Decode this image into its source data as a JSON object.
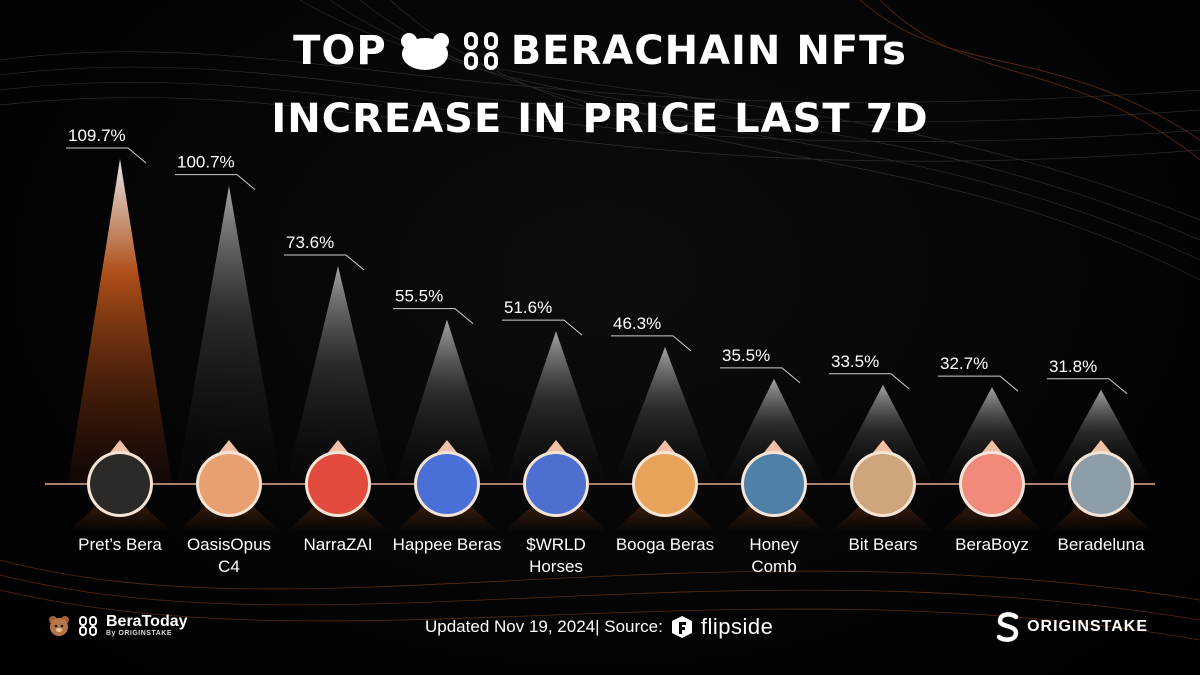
{
  "header": {
    "title_prefix": "TOP",
    "title_suffix": "BERACHAIN NFTs",
    "title_line2": "INCREASE IN PRICE LAST 7D"
  },
  "chart_data": {
    "type": "bar",
    "title": "TOP BERACHAIN NFTs INCREASE IN PRICE LAST 7D",
    "unit": "%",
    "categories": [
      "Pret’s Bera",
      "OasisOpus C4",
      "NarraZAI",
      "Happee Beras",
      "$WRLD Horses",
      "Booga Beras",
      "Honey Comb",
      "Bit Bears",
      "BeraBoyz",
      "Beradeluna"
    ],
    "values": [
      109.7,
      100.7,
      73.6,
      55.5,
      51.6,
      46.3,
      35.5,
      33.5,
      32.7,
      31.8
    ],
    "value_labels": [
      "109.7%",
      "100.7%",
      "73.6%",
      "55.5%",
      "51.6%",
      "46.3%",
      "35.5%",
      "33.5%",
      "32.7%",
      "31.8%"
    ],
    "label_lines": [
      [
        "Pret’s Bera"
      ],
      [
        "OasisOpus",
        "C4"
      ],
      [
        "NarraZAI"
      ],
      [
        "Happee Beras"
      ],
      [
        "$WRLD",
        "Horses"
      ],
      [
        "Booga Beras"
      ],
      [
        "Honey",
        "Comb"
      ],
      [
        "Bit Bears"
      ],
      [
        "BeraBoyz"
      ],
      [
        "Beradeluna"
      ]
    ],
    "highlight_index": 0,
    "grid": false,
    "legend": "none",
    "colors": {
      "highlight": "#c2571b",
      "bar": "#8a8a8a",
      "baseline": "#e3a98e",
      "marker": "#f2c0a6"
    },
    "avatar_colors": [
      "#2c2a26",
      "#e9a070",
      "#e34b3e",
      "#4a6fd6",
      "#4c6fd0",
      "#e7a35a",
      "#4f80a8",
      "#cfa57c",
      "#f18a7a",
      "#8e9ea8"
    ]
  },
  "footer": {
    "brand_name": "BeraToday",
    "brand_sub": "By ORIGINSTAKE",
    "updated": "Updated Nov 19, 2024| Source:",
    "source": "flipside",
    "partner": "ORIGINSTAKE"
  }
}
